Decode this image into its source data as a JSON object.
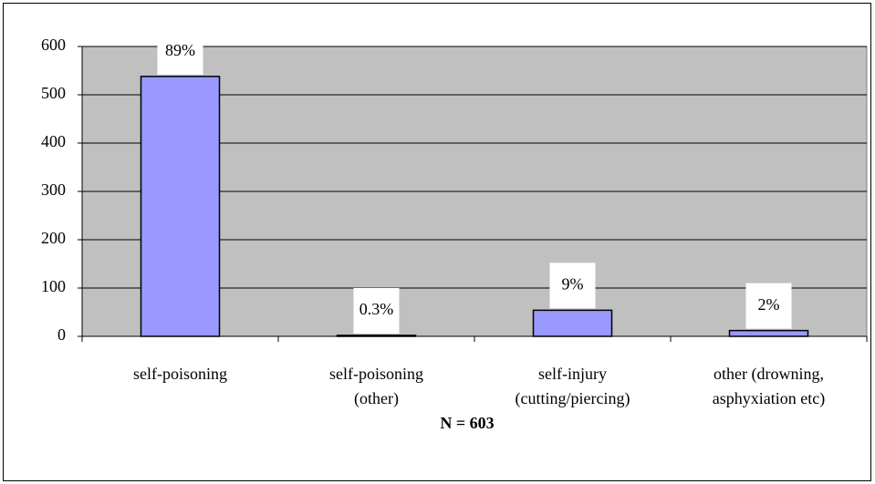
{
  "chart_data": {
    "type": "bar",
    "categories": [
      "self-poisoning",
      "self-poisoning (other)",
      "self-injury (cutting/piercing)",
      "other (drowning, asphyxiation etc)"
    ],
    "values": [
      538,
      2,
      54,
      12
    ],
    "value_labels": [
      "89%",
      "0.3%",
      "9%",
      "2%"
    ],
    "color": "#9999ff",
    "ylim": [
      0,
      600
    ],
    "yticks": [
      0,
      100,
      200,
      300,
      400,
      500,
      600
    ],
    "grid": true,
    "note": "N = 603"
  }
}
